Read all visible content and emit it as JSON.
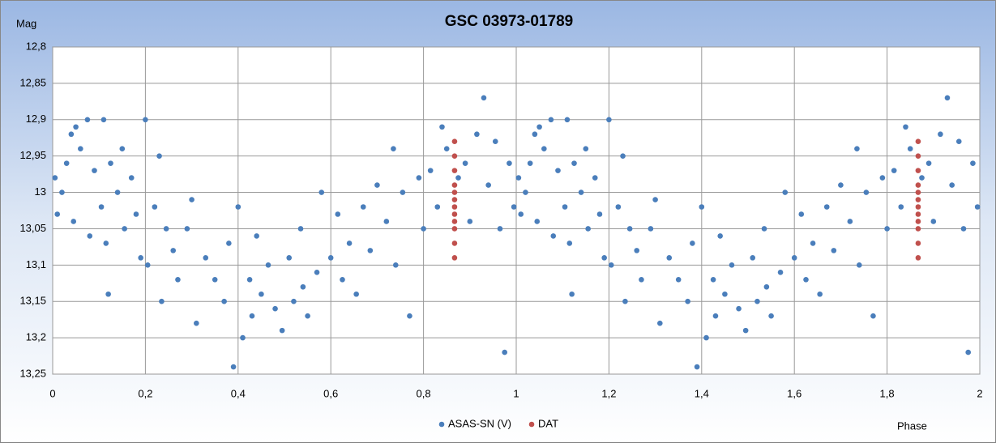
{
  "chart_data": {
    "type": "scatter",
    "title": "GSC 03973-01789",
    "y_label": "Mag",
    "x_label": "Phase",
    "xlim": [
      0,
      2
    ],
    "ylim": [
      12.8,
      13.25
    ],
    "y_inverted": true,
    "grid": true,
    "legend": "bottom",
    "xticks": [
      0,
      {
        "value": 0.2,
        "label": "0,2"
      },
      {
        "value": 0.4,
        "label": "0,4"
      },
      {
        "value": 0.6,
        "label": "0,6"
      },
      {
        "value": 0.8,
        "label": "0,8"
      },
      1,
      {
        "value": 1.2,
        "label": "1,2"
      },
      {
        "value": 1.4,
        "label": "1,4"
      },
      {
        "value": 1.6,
        "label": "1,6"
      },
      {
        "value": 1.8,
        "label": "1,8"
      },
      2
    ],
    "yticks": [
      {
        "value": 12.8,
        "label": "12,8"
      },
      {
        "value": 12.85,
        "label": "12,85"
      },
      {
        "value": 12.9,
        "label": "12,9"
      },
      {
        "value": 12.95,
        "label": "12,95"
      },
      13,
      {
        "value": 13.05,
        "label": "13,05"
      },
      {
        "value": 13.1,
        "label": "13,1"
      },
      {
        "value": 13.15,
        "label": "13,15"
      },
      {
        "value": 13.2,
        "label": "13,2"
      },
      {
        "value": 13.25,
        "label": "13,25"
      }
    ],
    "series": [
      {
        "name": "ASAS-SN (V)",
        "color": "#4a7ebb",
        "x": [
          0.005,
          0.01,
          0.02,
          0.03,
          0.04,
          0.045,
          0.05,
          0.06,
          0.075,
          0.08,
          0.09,
          0.105,
          0.11,
          0.115,
          0.12,
          0.125,
          0.14,
          0.15,
          0.155,
          0.17,
          0.18,
          0.19,
          0.2,
          0.205,
          0.22,
          0.23,
          0.235,
          0.245,
          0.26,
          0.27,
          0.29,
          0.3,
          0.31,
          0.33,
          0.35,
          0.37,
          0.38,
          0.39,
          0.4,
          0.41,
          0.425,
          0.43,
          0.44,
          0.45,
          0.465,
          0.48,
          0.495,
          0.51,
          0.52,
          0.535,
          0.54,
          0.55,
          0.57,
          0.58,
          0.6,
          0.615,
          0.625,
          0.64,
          0.655,
          0.67,
          0.685,
          0.7,
          0.72,
          0.735,
          0.74,
          0.755,
          0.77,
          0.79,
          0.8,
          0.815,
          0.83,
          0.84,
          0.85,
          0.875,
          0.89,
          0.9,
          0.915,
          0.93,
          0.94,
          0.955,
          0.965,
          0.975,
          0.985,
          0.995,
          1.005,
          1.01,
          1.02,
          1.03,
          1.04,
          1.045,
          1.05,
          1.06,
          1.075,
          1.08,
          1.09,
          1.105,
          1.11,
          1.115,
          1.12,
          1.125,
          1.14,
          1.15,
          1.155,
          1.17,
          1.18,
          1.19,
          1.2,
          1.205,
          1.22,
          1.23,
          1.235,
          1.245,
          1.26,
          1.27,
          1.29,
          1.3,
          1.31,
          1.33,
          1.35,
          1.37,
          1.38,
          1.39,
          1.4,
          1.41,
          1.425,
          1.43,
          1.44,
          1.45,
          1.465,
          1.48,
          1.495,
          1.51,
          1.52,
          1.535,
          1.54,
          1.55,
          1.57,
          1.58,
          1.6,
          1.615,
          1.625,
          1.64,
          1.655,
          1.67,
          1.685,
          1.7,
          1.72,
          1.735,
          1.74,
          1.755,
          1.77,
          1.79,
          1.8,
          1.815,
          1.83,
          1.84,
          1.85,
          1.875,
          1.89,
          1.9,
          1.915,
          1.93,
          1.94,
          1.955,
          1.965,
          1.975,
          1.985,
          1.995
        ],
        "values": [
          12.98,
          13.03,
          13.0,
          12.96,
          12.92,
          13.04,
          12.91,
          12.94,
          12.9,
          13.06,
          12.97,
          13.02,
          12.9,
          13.07,
          13.14,
          12.96,
          13.0,
          12.94,
          13.05,
          12.98,
          13.03,
          13.09,
          12.9,
          13.1,
          13.02,
          12.95,
          13.15,
          13.05,
          13.08,
          13.12,
          13.05,
          13.01,
          13.18,
          13.09,
          13.12,
          13.15,
          13.07,
          13.24,
          13.02,
          13.2,
          13.12,
          13.17,
          13.06,
          13.14,
          13.1,
          13.16,
          13.19,
          13.09,
          13.15,
          13.05,
          13.13,
          13.17,
          13.11,
          13.0,
          13.09,
          13.03,
          13.12,
          13.07,
          13.14,
          13.02,
          13.08,
          12.99,
          13.04,
          12.94,
          13.1,
          13.0,
          13.17,
          12.98,
          13.05,
          12.97,
          13.02,
          12.91,
          12.94,
          12.98,
          12.96,
          13.04,
          12.92,
          12.87,
          12.99,
          12.93,
          13.05,
          13.22,
          12.96,
          13.02,
          12.98,
          13.03,
          13.0,
          12.96,
          12.92,
          13.04,
          12.91,
          12.94,
          12.9,
          13.06,
          12.97,
          13.02,
          12.9,
          13.07,
          13.14,
          12.96,
          13.0,
          12.94,
          13.05,
          12.98,
          13.03,
          13.09,
          12.9,
          13.1,
          13.02,
          12.95,
          13.15,
          13.05,
          13.08,
          13.12,
          13.05,
          13.01,
          13.18,
          13.09,
          13.12,
          13.15,
          13.07,
          13.24,
          13.02,
          13.2,
          13.12,
          13.17,
          13.06,
          13.14,
          13.1,
          13.16,
          13.19,
          13.09,
          13.15,
          13.05,
          13.13,
          13.17,
          13.11,
          13.0,
          13.09,
          13.03,
          13.12,
          13.07,
          13.14,
          13.02,
          13.08,
          12.99,
          13.04,
          12.94,
          13.1,
          13.0,
          13.17,
          12.98,
          13.05,
          12.97,
          13.02,
          12.91,
          12.94,
          12.98,
          12.96,
          13.04,
          12.92,
          12.87,
          12.99,
          12.93,
          13.05,
          13.22,
          12.96,
          13.02
        ]
      },
      {
        "name": "DAT",
        "color": "#c0504d",
        "x": [
          0.867,
          0.867,
          0.867,
          0.867,
          0.867,
          0.867,
          0.867,
          0.867,
          0.867,
          0.867,
          0.867,
          0.867,
          1.867,
          1.867,
          1.867,
          1.867,
          1.867,
          1.867,
          1.867,
          1.867,
          1.867,
          1.867,
          1.867,
          1.867
        ],
        "values": [
          12.93,
          12.95,
          12.97,
          12.99,
          13.0,
          13.01,
          13.02,
          13.03,
          13.04,
          13.05,
          13.07,
          13.09,
          12.93,
          12.95,
          12.97,
          12.99,
          13.0,
          13.01,
          13.02,
          13.03,
          13.04,
          13.05,
          13.07,
          13.09
        ]
      }
    ]
  }
}
